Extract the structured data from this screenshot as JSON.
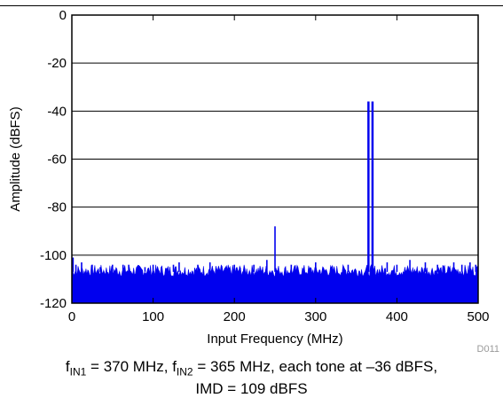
{
  "chart_data": {
    "type": "line",
    "title": "",
    "xlabel": "Input Frequency (MHz)",
    "ylabel": "Amplitude (dBFS)",
    "xlim": [
      0,
      500
    ],
    "ylim": [
      -120,
      0
    ],
    "x_ticks": [
      0,
      100,
      200,
      300,
      400,
      500
    ],
    "y_ticks": [
      0,
      -20,
      -40,
      -60,
      -80,
      -100,
      -120
    ],
    "grid": "horizontal",
    "series_color": "#0000ee",
    "noise_floor": {
      "baseline": -107,
      "range": [
        -109,
        -104
      ],
      "fill_to": -120
    },
    "series": [
      {
        "x": [
          1.5,
          5,
          12,
          25,
          35,
          50,
          63,
          70,
          90,
          100,
          125,
          132,
          155,
          170,
          200,
          224,
          240,
          250,
          270,
          300,
          340,
          365,
          370,
          388,
          400,
          416,
          435,
          450,
          470,
          480,
          490,
          497
        ],
        "values": [
          -101,
          -104,
          -103,
          -104,
          -105,
          -104,
          -104,
          -104,
          -105,
          -104,
          -104,
          -103,
          -104,
          -103,
          -104,
          -104,
          -102,
          -88,
          -104,
          -103,
          -104,
          -36,
          -36,
          -103,
          -104,
          -102,
          -103,
          -104,
          -103,
          -104,
          -103,
          -104
        ]
      }
    ],
    "label_id": "D011"
  },
  "caption": {
    "f1_symbol": "f",
    "f1_sub": "IN1",
    "f1_value": " = 370 MHz, ",
    "f2_symbol": "f",
    "f2_sub": "IN2",
    "f2_value": " = 365 MHz, each tone at –36 dBFS,",
    "line2": "IMD = 109 dBFS"
  }
}
